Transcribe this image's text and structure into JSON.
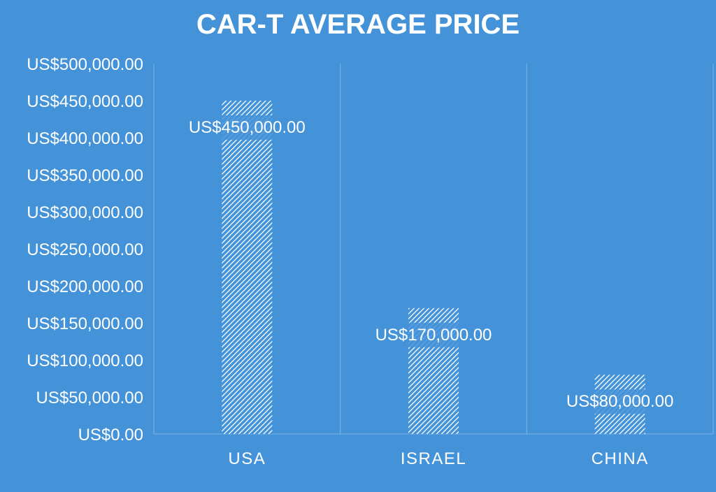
{
  "colors": {
    "background": "#4492d8",
    "bar": "#ffffff",
    "text": "#ffffff",
    "gridline": "#7fb4e6"
  },
  "chart_data": {
    "type": "bar",
    "title": "CAR-T AVERAGE PRICE",
    "xlabel": "",
    "ylabel": "",
    "categories": [
      "USA",
      "ISRAEL",
      "CHINA"
    ],
    "values": [
      450000,
      170000,
      80000
    ],
    "data_labels": [
      "US$450,000.00",
      "US$170,000.00",
      "US$80,000.00"
    ],
    "ylim": [
      0,
      500000
    ],
    "yticks": [
      0,
      50000,
      100000,
      150000,
      200000,
      250000,
      300000,
      350000,
      400000,
      450000,
      500000
    ],
    "ytick_labels": [
      "US$0.00",
      "US$50,000.00",
      "US$100,000.00",
      "US$150,000.00",
      "US$200,000.00",
      "US$250,000.00",
      "US$300,000.00",
      "US$350,000.00",
      "US$400,000.00",
      "US$450,000.00",
      "US$500,000.00"
    ],
    "grid": "vertical-category-separators",
    "legend": "none",
    "bar_fill": "diagonal-hatch"
  }
}
